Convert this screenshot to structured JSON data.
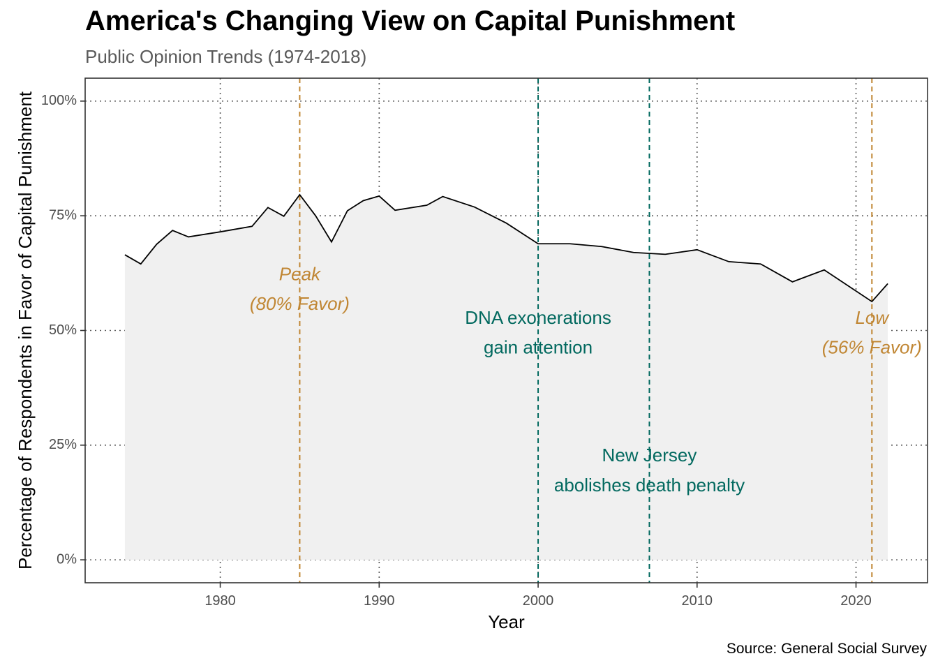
{
  "colors": {
    "line": "#000000",
    "area_fill": "#f0f0f0",
    "grid": "#5a5a5a",
    "panel_border": "#333333",
    "tick_text": "#4d4d4d",
    "highlight_gold": "#c08633",
    "highlight_teal": "#02695f"
  },
  "chart_data": {
    "type": "area",
    "title": "America's Changing View on Capital Punishment",
    "subtitle": "Public Opinion Trends (1974-2018)",
    "caption": "Source: General Social Survey",
    "xlabel": "Year",
    "ylabel": "Percentage of Respondents in Favor of Capital Punishment",
    "xlim": [
      1971.5,
      2024.5
    ],
    "ylim": [
      -5,
      105
    ],
    "x_ticks": [
      1980,
      1990,
      2000,
      2010,
      2020
    ],
    "x_tick_labels": [
      "1980",
      "1990",
      "2000",
      "2010",
      "2020"
    ],
    "y_ticks": [
      0,
      25,
      50,
      75,
      100
    ],
    "y_tick_labels": [
      "0%",
      "25%",
      "50%",
      "75%",
      "100%"
    ],
    "grid": "dotted",
    "x": [
      1974,
      1975,
      1976,
      1977,
      1978,
      1980,
      1982,
      1983,
      1984,
      1985,
      1986,
      1987,
      1988,
      1989,
      1990,
      1991,
      1993,
      1994,
      1996,
      1998,
      2000,
      2002,
      2004,
      2006,
      2008,
      2010,
      2012,
      2014,
      2016,
      2018,
      2021,
      2022
    ],
    "values": [
      66.5,
      64.5,
      68.8,
      71.8,
      70.4,
      71.5,
      72.7,
      76.8,
      74.9,
      79.6,
      75.0,
      69.3,
      76.1,
      78.3,
      79.3,
      76.2,
      77.3,
      79.2,
      76.9,
      73.4,
      68.9,
      68.9,
      68.3,
      67.0,
      66.6,
      67.6,
      65.0,
      64.5,
      60.6,
      63.2,
      56.3,
      60.2
    ],
    "annotations": [
      {
        "x": 1985,
        "color": "gold",
        "italic": true,
        "lines": [
          "Peak",
          "(80% Favor)"
        ],
        "label_y": [
          62,
          55.5
        ]
      },
      {
        "x": 2000,
        "color": "teal",
        "italic": false,
        "lines": [
          "DNA exonerations",
          "gain attention"
        ],
        "label_y": [
          52.5,
          46
        ]
      },
      {
        "x": 2007,
        "color": "teal",
        "italic": false,
        "lines": [
          "New Jersey",
          "abolishes death penalty"
        ],
        "label_y": [
          22.5,
          16
        ]
      },
      {
        "x": 2021,
        "color": "gold",
        "italic": true,
        "lines": [
          "Low",
          "(56% Favor)"
        ],
        "label_y": [
          52.5,
          46
        ]
      }
    ]
  }
}
